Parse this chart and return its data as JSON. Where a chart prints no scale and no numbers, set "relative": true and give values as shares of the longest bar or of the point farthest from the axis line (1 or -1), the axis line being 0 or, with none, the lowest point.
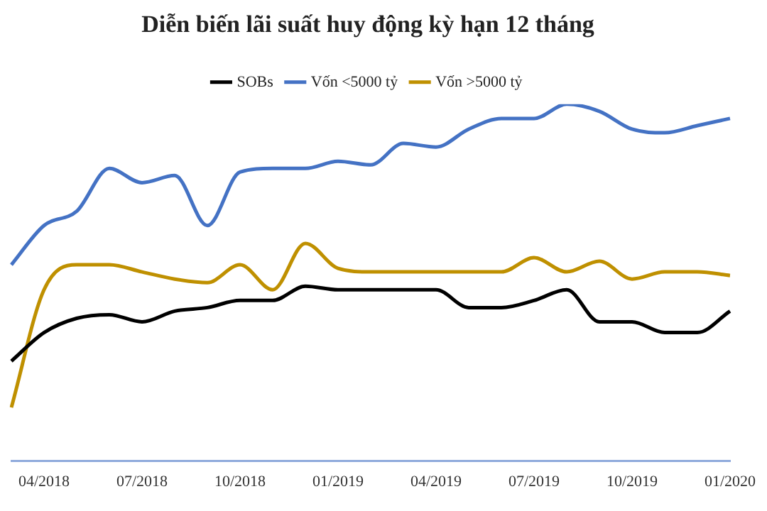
{
  "chart_data": {
    "type": "line",
    "title": "Diễn biến lãi suất huy động kỳ hạn 12 tháng",
    "relative": true,
    "legend": "top",
    "grid": false,
    "marker": "none",
    "line_style": "solid",
    "categories": [
      null,
      "04/2018",
      null,
      null,
      "07/2018",
      null,
      null,
      "10/2018",
      null,
      null,
      "01/2019",
      null,
      null,
      "04/2019",
      null,
      null,
      "07/2019",
      null,
      null,
      "10/2019",
      null,
      null,
      "01/2020"
    ],
    "series": [
      {
        "name": "SOBs",
        "color": "#000000",
        "values": [
          0.28,
          0.36,
          0.4,
          0.41,
          0.39,
          0.42,
          0.43,
          0.45,
          0.45,
          0.49,
          0.48,
          0.48,
          0.48,
          0.48,
          0.43,
          0.43,
          0.45,
          0.48,
          0.39,
          0.39,
          0.36,
          0.36,
          0.42
        ]
      },
      {
        "name": "Vốn <5000 tỷ",
        "color": "#4472c4",
        "values": [
          0.55,
          0.66,
          0.7,
          0.82,
          0.78,
          0.8,
          0.66,
          0.81,
          0.82,
          0.82,
          0.84,
          0.83,
          0.89,
          0.88,
          0.93,
          0.96,
          0.96,
          1,
          0.98,
          0.93,
          0.92,
          0.94,
          0.96
        ]
      },
      {
        "name": "Vốn >5000 tỷ",
        "color": "#bf9000",
        "values": [
          0.15,
          0.48,
          0.55,
          0.55,
          0.53,
          0.51,
          0.5,
          0.55,
          0.48,
          0.61,
          0.54,
          0.53,
          0.53,
          0.53,
          0.53,
          0.53,
          0.57,
          0.53,
          0.56,
          0.51,
          0.53,
          0.53,
          0.52
        ]
      }
    ]
  }
}
